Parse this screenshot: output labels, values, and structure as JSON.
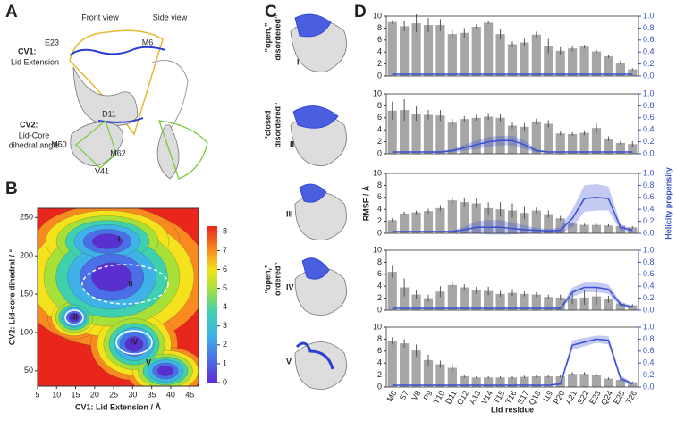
{
  "panels": {
    "A": {
      "label": "A",
      "front": "Front view",
      "side": "Side view",
      "cv1": "CV1:",
      "cv1_name": "Lid Extension",
      "cv2": "CV2:",
      "cv2_name": [
        "Lid-Core",
        "dihedral angle"
      ],
      "residues": [
        "E23",
        "M6",
        "D11",
        "M50",
        "M62",
        "V41"
      ]
    },
    "B": {
      "label": "B"
    },
    "C": {
      "label": "C",
      "states": [
        [
          "“open,”",
          "disordered”"
        ],
        [
          "“closed",
          "disordered”"
        ],
        [],
        [
          "“open,”",
          "ordered”"
        ],
        []
      ],
      "numerals": [
        "I",
        "II",
        "III",
        "IV",
        "V"
      ]
    },
    "D": {
      "label": "D"
    }
  },
  "chart_data": [
    {
      "type": "contour",
      "xlabel": "CV1: Lid Extension / Å",
      "ylabel": "CV2: Lid-core dihedral / °",
      "xlim": [
        5,
        47.3
      ],
      "xticks": [
        5,
        10,
        15,
        20,
        25,
        30,
        35,
        40,
        45
      ],
      "ylim": [
        30,
        262
      ],
      "yticks": [
        50,
        100,
        150,
        200,
        250
      ],
      "zlim": [
        0,
        8.3
      ],
      "zticks": [
        0,
        1,
        2,
        3,
        4,
        5,
        6,
        7,
        8
      ],
      "annotations": [
        "I",
        "II",
        "III",
        "IV",
        "V"
      ]
    },
    {
      "type": "bar",
      "ylim": [
        0,
        10
      ],
      "yticks": [
        0,
        2,
        4,
        6,
        8,
        10
      ],
      "y2lim": [
        0,
        1
      ],
      "y2ticks": [
        {
          "value": 0,
          "label": "0.0"
        },
        0.2,
        0.4,
        0.6,
        0.8,
        {
          "value": 1,
          "label": "1.0"
        }
      ],
      "series": [
        {
          "color": "#a6a6a6",
          "values": [
            9.0,
            8.3,
            8.8,
            8.5,
            8.5,
            7.0,
            7.2,
            8.2,
            8.9,
            7.0,
            5.3,
            5.6,
            6.9,
            5.0,
            4.2,
            4.6,
            4.9,
            4.1,
            3.3,
            2.2,
            1.1
          ],
          "errors": [
            0.3,
            0.8,
            1.5,
            1.2,
            1.0,
            0.6,
            0.8,
            0.4,
            0.2,
            0.9,
            0.5,
            0.6,
            0.5,
            1.2,
            0.6,
            0.5,
            0.3,
            0.3,
            0.3,
            0.3,
            0.2
          ]
        },
        {
          "type": "line",
          "axis": "y2",
          "color": "#3a4fd1",
          "values": [
            0.03,
            0.03,
            0.03,
            0.03,
            0.03,
            0.03,
            0.03,
            0.03,
            0.03,
            0.03,
            0.03,
            0.03,
            0.03,
            0.03,
            0.03,
            0.03,
            0.03,
            0.03,
            0.03,
            0.03,
            0.03
          ],
          "errors": [
            0.01,
            0.01,
            0.01,
            0.01,
            0.01,
            0.01,
            0.01,
            0.01,
            0.01,
            0.01,
            0.01,
            0.01,
            0.01,
            0.01,
            0.01,
            0.01,
            0.01,
            0.01,
            0.01,
            0.01,
            0.01
          ]
        }
      ]
    },
    {
      "type": "bar",
      "ylim": [
        0,
        10
      ],
      "yticks": [
        0,
        2,
        4,
        6,
        8,
        10
      ],
      "y2lim": [
        0,
        1
      ],
      "y2ticks": [
        {
          "value": 0,
          "label": "0.0"
        },
        0.2,
        0.4,
        0.6,
        0.8,
        {
          "value": 1,
          "label": "1.0"
        }
      ],
      "series": [
        {
          "color": "#a6a6a6",
          "values": [
            7.2,
            7.3,
            6.7,
            6.5,
            6.4,
            5.2,
            5.8,
            6.0,
            6.2,
            6.0,
            4.7,
            4.5,
            5.4,
            5.0,
            3.4,
            3.3,
            3.5,
            4.3,
            2.5,
            1.8,
            1.6
          ],
          "errors": [
            1.5,
            1.8,
            1.2,
            0.8,
            0.9,
            0.6,
            0.5,
            0.5,
            0.6,
            0.7,
            0.5,
            0.6,
            0.5,
            0.6,
            0.3,
            0.3,
            0.4,
            0.8,
            0.4,
            0.3,
            0.5
          ]
        },
        {
          "type": "line",
          "axis": "y2",
          "color": "#3a4fd1",
          "values": [
            0.03,
            0.03,
            0.03,
            0.03,
            0.03,
            0.05,
            0.1,
            0.15,
            0.2,
            0.22,
            0.22,
            0.15,
            0.05,
            0.03,
            0.03,
            0.03,
            0.03,
            0.03,
            0.03,
            0.03,
            0.03
          ],
          "errors": [
            0.01,
            0.01,
            0.01,
            0.01,
            0.02,
            0.03,
            0.05,
            0.07,
            0.08,
            0.08,
            0.08,
            0.07,
            0.03,
            0.01,
            0.01,
            0.01,
            0.01,
            0.01,
            0.01,
            0.01,
            0.01
          ]
        }
      ]
    },
    {
      "type": "bar",
      "ylim": [
        0,
        10
      ],
      "yticks": [
        0,
        2,
        4,
        6,
        8,
        10
      ],
      "y2lim": [
        0,
        1
      ],
      "y2ticks": [
        {
          "value": 0,
          "label": "0.0"
        },
        0.2,
        0.4,
        0.6,
        0.8,
        {
          "value": 1,
          "label": "1.0"
        }
      ],
      "ylabel": "RMSF / Å",
      "y2label": "Helicity propensity",
      "series": [
        {
          "color": "#a6a6a6",
          "values": [
            2.2,
            3.3,
            3.5,
            3.7,
            4.2,
            5.5,
            5.2,
            5.0,
            4.2,
            4.0,
            3.8,
            3.4,
            3.8,
            3.2,
            2.5,
            1.6,
            1.4,
            1.4,
            1.3,
            1.2,
            1.0
          ],
          "errors": [
            0.3,
            0.3,
            0.3,
            0.4,
            0.5,
            0.5,
            0.8,
            0.8,
            1.0,
            1.2,
            1.2,
            1.0,
            0.5,
            0.6,
            0.4,
            0.2,
            0.2,
            0.2,
            0.2,
            0.2,
            0.2
          ]
        },
        {
          "type": "line",
          "axis": "y2",
          "color": "#3a4fd1",
          "values": [
            0.03,
            0.03,
            0.03,
            0.03,
            0.03,
            0.03,
            0.06,
            0.1,
            0.1,
            0.1,
            0.08,
            0.06,
            0.05,
            0.04,
            0.05,
            0.25,
            0.58,
            0.6,
            0.58,
            0.1,
            0.05
          ],
          "errors": [
            0.01,
            0.01,
            0.01,
            0.01,
            0.01,
            0.02,
            0.05,
            0.1,
            0.12,
            0.12,
            0.1,
            0.07,
            0.04,
            0.03,
            0.05,
            0.15,
            0.22,
            0.22,
            0.2,
            0.06,
            0.02
          ]
        }
      ]
    },
    {
      "type": "bar",
      "ylim": [
        0,
        10
      ],
      "yticks": [
        0,
        2,
        4,
        6,
        8,
        10
      ],
      "y2lim": [
        0,
        1
      ],
      "y2ticks": [
        {
          "value": 0,
          "label": "0.0"
        },
        0.2,
        0.4,
        0.6,
        0.8,
        {
          "value": 1,
          "label": "1.0"
        }
      ],
      "series": [
        {
          "color": "#a6a6a6",
          "values": [
            6.4,
            3.8,
            2.6,
            2.0,
            3.1,
            4.2,
            3.8,
            3.3,
            3.2,
            2.7,
            2.9,
            2.7,
            2.6,
            2.2,
            2.1,
            2.0,
            2.1,
            2.3,
            1.8,
            1.1,
            0.8
          ],
          "errors": [
            1.0,
            1.5,
            0.8,
            0.6,
            0.9,
            0.4,
            0.5,
            0.6,
            0.7,
            0.5,
            0.6,
            0.4,
            0.4,
            0.4,
            0.5,
            1.0,
            1.2,
            1.4,
            0.6,
            0.3,
            0.2
          ]
        },
        {
          "type": "line",
          "axis": "y2",
          "color": "#3a4fd1",
          "values": [
            0.03,
            0.03,
            0.03,
            0.03,
            0.03,
            0.03,
            0.03,
            0.03,
            0.03,
            0.03,
            0.03,
            0.03,
            0.03,
            0.03,
            0.03,
            0.3,
            0.38,
            0.38,
            0.35,
            0.1,
            0.05
          ],
          "errors": [
            0.01,
            0.01,
            0.01,
            0.01,
            0.01,
            0.01,
            0.01,
            0.01,
            0.01,
            0.01,
            0.01,
            0.01,
            0.01,
            0.01,
            0.02,
            0.08,
            0.08,
            0.08,
            0.08,
            0.04,
            0.02
          ]
        }
      ]
    },
    {
      "type": "bar",
      "ylim": [
        0,
        10
      ],
      "yticks": [
        0,
        2,
        4,
        6,
        8,
        10
      ],
      "y2lim": [
        0,
        1
      ],
      "y2ticks": [
        {
          "value": 0,
          "label": "0.0"
        },
        0.2,
        0.4,
        0.6,
        0.8,
        {
          "value": 1,
          "label": "1.0"
        }
      ],
      "xlabel": "Lid residue",
      "categories": [
        "M6",
        "S7",
        "V8",
        "P9",
        "T10",
        "D11",
        "G12",
        "A13",
        "V14",
        "T15",
        "T16",
        "S17",
        "Q18",
        "I19",
        "P20",
        "A21",
        "S22",
        "E23",
        "Q24",
        "E25",
        "T26"
      ],
      "series": [
        {
          "color": "#a6a6a6",
          "values": [
            7.7,
            7.3,
            6.1,
            4.5,
            3.8,
            3.2,
            1.8,
            1.6,
            1.6,
            1.6,
            1.6,
            1.7,
            1.8,
            1.8,
            1.8,
            2.2,
            2.2,
            2.0,
            1.4,
            1.2,
            0.8
          ],
          "errors": [
            0.6,
            0.7,
            1.0,
            0.9,
            0.6,
            0.6,
            0.3,
            0.2,
            0.2,
            0.2,
            0.2,
            0.2,
            0.2,
            0.2,
            0.2,
            0.3,
            0.3,
            0.2,
            0.2,
            0.2,
            0.1
          ]
        },
        {
          "type": "line",
          "axis": "y2",
          "color": "#3a4fd1",
          "values": [
            0.03,
            0.03,
            0.03,
            0.03,
            0.03,
            0.03,
            0.03,
            0.03,
            0.03,
            0.03,
            0.03,
            0.03,
            0.03,
            0.03,
            0.05,
            0.7,
            0.75,
            0.8,
            0.78,
            0.15,
            0.05
          ],
          "errors": [
            0.01,
            0.01,
            0.01,
            0.01,
            0.01,
            0.01,
            0.01,
            0.01,
            0.01,
            0.01,
            0.01,
            0.01,
            0.01,
            0.01,
            0.02,
            0.08,
            0.07,
            0.06,
            0.07,
            0.05,
            0.02
          ]
        }
      ]
    }
  ]
}
